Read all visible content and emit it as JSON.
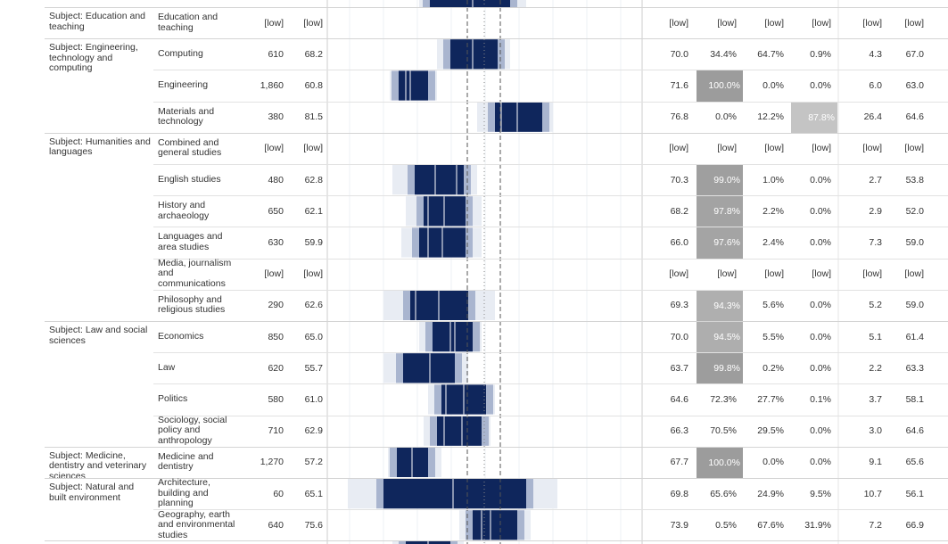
{
  "table": {
    "groups": [
      {
        "subject": "Subject: Education and teaching",
        "rows": [
          [
            "Education and teaching",
            "[low]",
            "[low]",
            "[low]",
            "[low]",
            "[low]",
            "[low]",
            "[low]",
            "[low]"
          ]
        ]
      },
      {
        "subject": "Subject: Engineering, technology and computing",
        "rows": [
          [
            "Computing",
            "610",
            "68.2",
            "70.0",
            "34.4%",
            "64.7%",
            "0.9%",
            "4.3",
            "67.0"
          ],
          [
            "Engineering",
            "1,860",
            "60.8",
            "71.6",
            "100.0%",
            "0.0%",
            "0.0%",
            "6.0",
            "63.0"
          ],
          [
            "Materials and technology",
            "380",
            "81.5",
            "76.8",
            "0.0%",
            "12.2%",
            "87.8%",
            "26.4",
            "64.6"
          ]
        ]
      },
      {
        "subject": "Subject: Humanities and languages",
        "rows": [
          [
            "Combined and general studies",
            "[low]",
            "[low]",
            "[low]",
            "[low]",
            "[low]",
            "[low]",
            "[low]",
            "[low]"
          ],
          [
            "English studies",
            "480",
            "62.8",
            "70.3",
            "99.0%",
            "1.0%",
            "0.0%",
            "2.7",
            "53.8"
          ],
          [
            "History and archaeology",
            "650",
            "62.1",
            "68.2",
            "97.8%",
            "2.2%",
            "0.0%",
            "2.9",
            "52.0"
          ],
          [
            "Languages and area studies",
            "630",
            "59.9",
            "66.0",
            "97.6%",
            "2.4%",
            "0.0%",
            "7.3",
            "59.0"
          ],
          [
            "Media, journalism and communications",
            "[low]",
            "[low]",
            "[low]",
            "[low]",
            "[low]",
            "[low]",
            "[low]",
            "[low]"
          ],
          [
            "Philosophy and religious studies",
            "290",
            "62.6",
            "69.3",
            "94.3%",
            "5.6%",
            "0.0%",
            "5.2",
            "59.0"
          ]
        ]
      },
      {
        "subject": "Subject: Law and social sciences",
        "rows": [
          [
            "Economics",
            "850",
            "65.0",
            "70.0",
            "94.5%",
            "5.5%",
            "0.0%",
            "5.1",
            "61.4"
          ],
          [
            "Law",
            "620",
            "55.7",
            "63.7",
            "99.8%",
            "0.2%",
            "0.0%",
            "2.2",
            "63.3"
          ],
          [
            "Politics",
            "580",
            "61.0",
            "64.6",
            "72.3%",
            "27.7%",
            "0.1%",
            "3.7",
            "58.1"
          ],
          [
            "Sociology, social policy and anthropology",
            "710",
            "62.9",
            "66.3",
            "70.5%",
            "29.5%",
            "0.0%",
            "3.0",
            "64.6"
          ]
        ]
      },
      {
        "subject": "Subject: Medicine, dentistry and veterinary sciences",
        "rows": [
          [
            "Medicine and dentistry",
            "1,270",
            "57.2",
            "67.7",
            "100.0%",
            "0.0%",
            "0.0%",
            "9.1",
            "65.6"
          ]
        ]
      },
      {
        "subject": "Subject: Natural and built environment",
        "rows": [
          [
            "Architecture, building and planning",
            "60",
            "65.1",
            "69.8",
            "65.6%",
            "24.9%",
            "9.5%",
            "10.7",
            "56.1"
          ],
          [
            "Geography, earth and environmental studies",
            "640",
            "75.6",
            "73.9",
            "0.5%",
            "67.6%",
            "31.9%",
            "7.2",
            "66.9"
          ]
        ]
      }
    ]
  }
}
